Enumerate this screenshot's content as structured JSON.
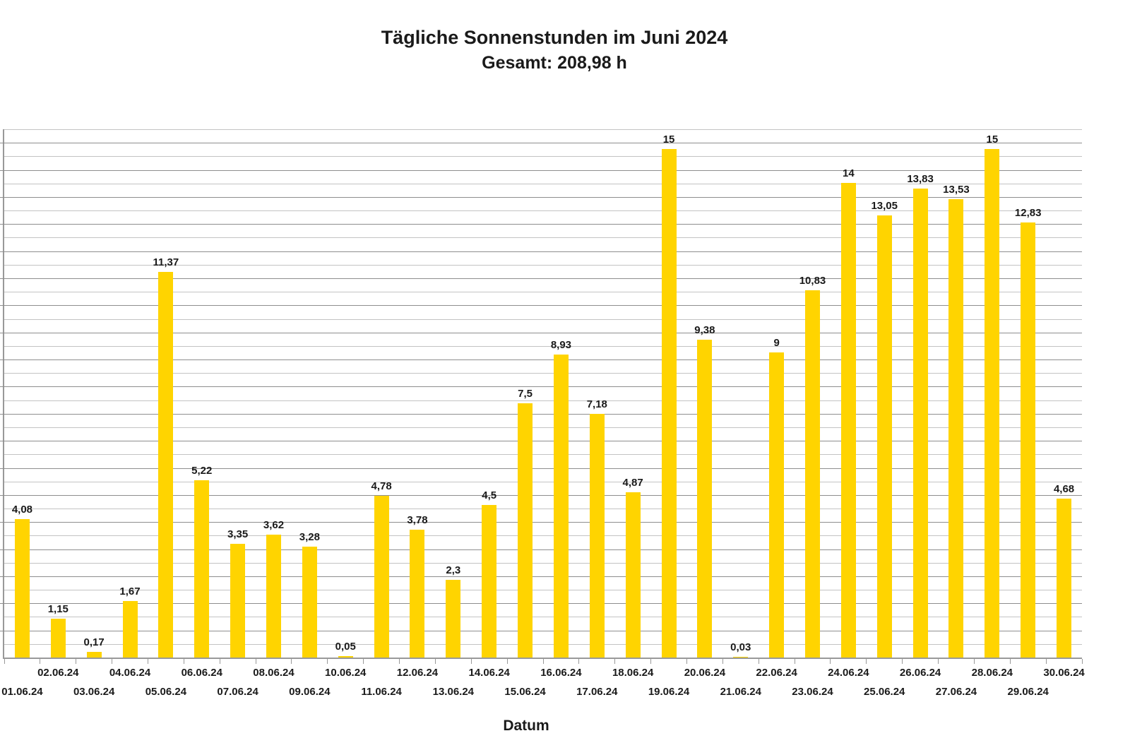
{
  "title": "Tägliche Sonnenstunden im Juni 2024",
  "subtitle": "Gesamt: 208,98 h",
  "colors": {
    "bar": "#FFD400",
    "axis": "#999999",
    "grid_major": "#8e8e8e",
    "grid_minor": "#c3c3c3",
    "text": "#1a1a1a"
  },
  "chart_data": {
    "type": "bar",
    "title": "Tägliche Sonnenstunden im Juni 2024",
    "subtitle": "Gesamt: 208,98 h",
    "xlabel": "Datum",
    "ylabel": "",
    "ylim": [
      0,
      15.6
    ],
    "grid_step": 0.4,
    "grid": true,
    "legend_position": "none",
    "bar_color": "#FFD400",
    "categories": [
      "01.06.24",
      "02.06.24",
      "03.06.24",
      "04.06.24",
      "05.06.24",
      "06.06.24",
      "07.06.24",
      "08.06.24",
      "09.06.24",
      "10.06.24",
      "11.06.24",
      "12.06.24",
      "13.06.24",
      "14.06.24",
      "15.06.24",
      "16.06.24",
      "17.06.24",
      "18.06.24",
      "19.06.24",
      "20.06.24",
      "21.06.24",
      "22.06.24",
      "23.06.24",
      "24.06.24",
      "25.06.24",
      "26.06.24",
      "27.06.24",
      "28.06.24",
      "29.06.24",
      "30.06.24"
    ],
    "values": [
      4.08,
      1.15,
      0.17,
      1.67,
      11.37,
      5.22,
      3.35,
      3.62,
      3.28,
      0.05,
      4.78,
      3.78,
      2.3,
      4.5,
      7.5,
      8.93,
      7.18,
      4.87,
      15,
      9.38,
      0.03,
      9,
      10.83,
      14,
      13.05,
      13.83,
      13.53,
      15,
      12.83,
      4.68
    ],
    "value_labels": [
      "4,08",
      "1,15",
      "0,17",
      "1,67",
      "11,37",
      "5,22",
      "3,35",
      "3,62",
      "3,28",
      "0,05",
      "4,78",
      "3,78",
      "2,3",
      "4,5",
      "7,5",
      "8,93",
      "7,18",
      "4,87",
      "15",
      "9,38",
      "0,03",
      "9",
      "10,83",
      "14",
      "13,05",
      "13,83",
      "13,53",
      "15",
      "12,83",
      "4,68"
    ]
  }
}
